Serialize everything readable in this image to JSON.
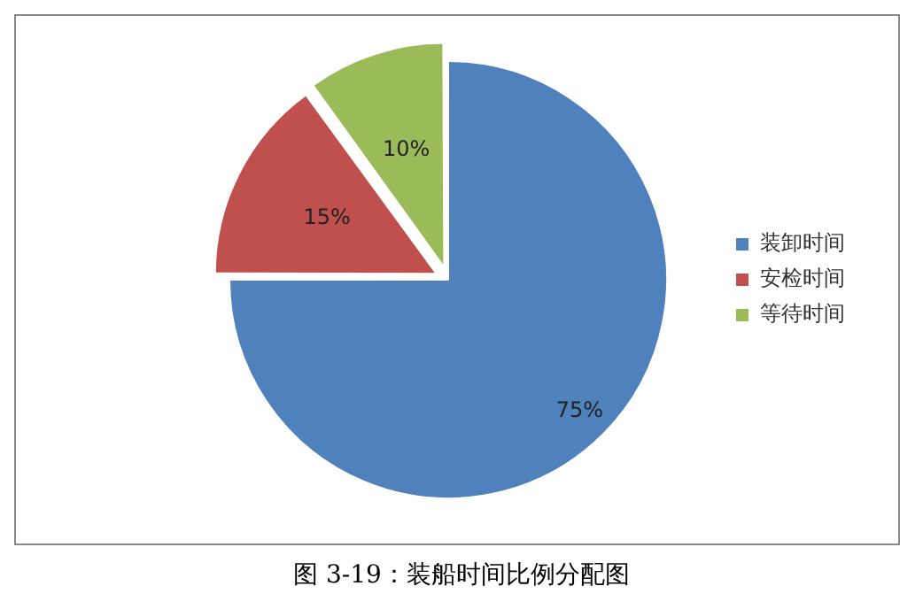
{
  "chart_data": {
    "type": "pie",
    "categories": [
      "装卸时间",
      "安检时间",
      "等待时间"
    ],
    "values": [
      75,
      15,
      10
    ],
    "colors": [
      "#4f81bd",
      "#c0504d",
      "#9bbb59"
    ],
    "value_labels": [
      "75%",
      "15%",
      "10%"
    ],
    "legend": "right",
    "annotations": [
      "图 3-19：装船时间比例分配图"
    ]
  }
}
